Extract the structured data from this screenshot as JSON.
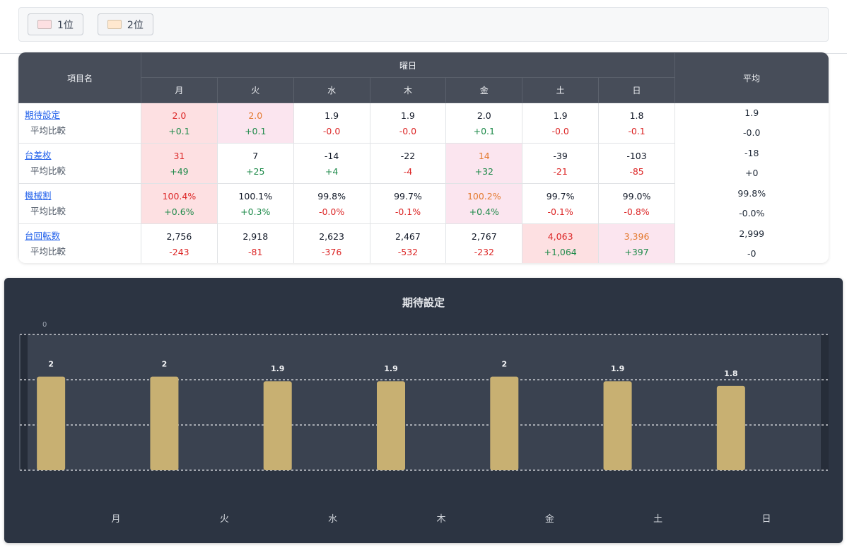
{
  "legend": [
    {
      "label": "1位",
      "color": "#fde0e2"
    },
    {
      "label": "2位",
      "color": "#ffe8cf"
    }
  ],
  "table": {
    "header_item": "項目名",
    "header_days": "曜日",
    "header_avg": "平均",
    "days": [
      "月",
      "火",
      "水",
      "木",
      "金",
      "土",
      "日"
    ],
    "sub_label": "平均比較",
    "rows": [
      {
        "name": "期待設定",
        "cells": [
          {
            "v": "2.0",
            "d": "+0.1",
            "rank": 1
          },
          {
            "v": "2.0",
            "d": "+0.1",
            "rank": 2
          },
          {
            "v": "1.9",
            "d": "-0.0",
            "rank": 0
          },
          {
            "v": "1.9",
            "d": "-0.0",
            "rank": 0
          },
          {
            "v": "2.0",
            "d": "+0.1",
            "rank": 0
          },
          {
            "v": "1.9",
            "d": "-0.0",
            "rank": 0
          },
          {
            "v": "1.8",
            "d": "-0.1",
            "rank": 0
          }
        ],
        "avg": "1.9",
        "avg_d": "-0.0"
      },
      {
        "name": "台差枚",
        "cells": [
          {
            "v": "31",
            "d": "+49",
            "rank": 1
          },
          {
            "v": "7",
            "d": "+25",
            "rank": 0
          },
          {
            "v": "-14",
            "d": "+4",
            "rank": 0
          },
          {
            "v": "-22",
            "d": "-4",
            "rank": 0
          },
          {
            "v": "14",
            "d": "+32",
            "rank": 2
          },
          {
            "v": "-39",
            "d": "-21",
            "rank": 0
          },
          {
            "v": "-103",
            "d": "-85",
            "rank": 0
          }
        ],
        "avg": "-18",
        "avg_d": "+0"
      },
      {
        "name": "機械割",
        "cells": [
          {
            "v": "100.4%",
            "d": "+0.6%",
            "rank": 1
          },
          {
            "v": "100.1%",
            "d": "+0.3%",
            "rank": 0
          },
          {
            "v": "99.8%",
            "d": "-0.0%",
            "rank": 0
          },
          {
            "v": "99.7%",
            "d": "-0.1%",
            "rank": 0
          },
          {
            "v": "100.2%",
            "d": "+0.4%",
            "rank": 2
          },
          {
            "v": "99.7%",
            "d": "-0.1%",
            "rank": 0
          },
          {
            "v": "99.0%",
            "d": "-0.8%",
            "rank": 0
          }
        ],
        "avg": "99.8%",
        "avg_d": "-0.0%"
      },
      {
        "name": "台回転数",
        "cells": [
          {
            "v": "2,756",
            "d": "-243",
            "rank": 0
          },
          {
            "v": "2,918",
            "d": "-81",
            "rank": 0
          },
          {
            "v": "2,623",
            "d": "-376",
            "rank": 0
          },
          {
            "v": "2,467",
            "d": "-532",
            "rank": 0
          },
          {
            "v": "2,767",
            "d": "-232",
            "rank": 0
          },
          {
            "v": "4,063",
            "d": "+1,064",
            "rank": 1
          },
          {
            "v": "3,396",
            "d": "+397",
            "rank": 2
          }
        ],
        "avg": "2,999",
        "avg_d": "-0"
      }
    ]
  },
  "chart_data": {
    "type": "bar",
    "title": "期待設定",
    "categories": [
      "月",
      "火",
      "水",
      "木",
      "金",
      "土",
      "日"
    ],
    "values": [
      2,
      2,
      1.9,
      1.9,
      2,
      1.9,
      1.8
    ],
    "data_labels": [
      "2",
      "2",
      "1.9",
      "1.9",
      "2",
      "1.9",
      "1.8"
    ],
    "top_tick_label": "0",
    "ylim": [
      0,
      2.9
    ],
    "grid": true,
    "bar_color": "#c8b072",
    "background_color": "#2c3442"
  }
}
